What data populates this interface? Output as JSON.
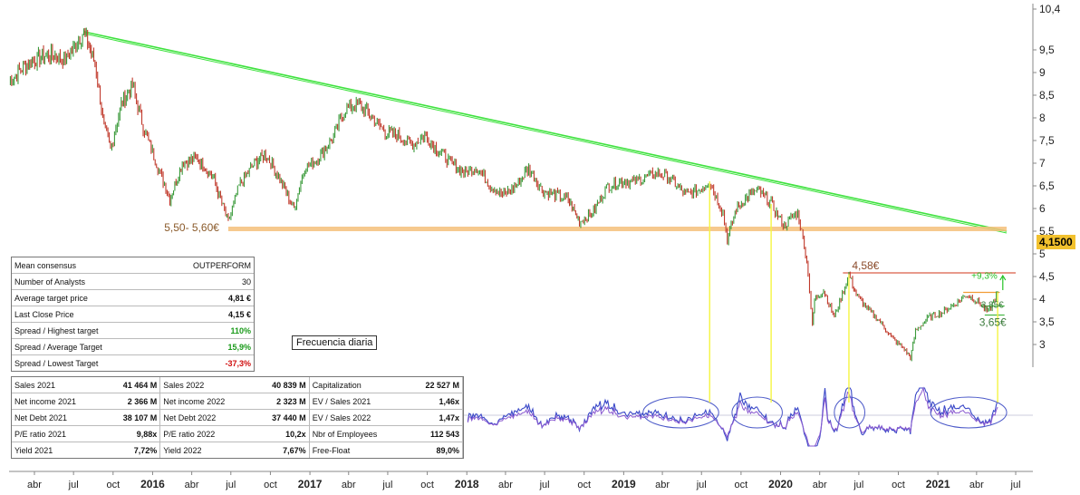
{
  "chart_data": {
    "type": "line",
    "title": "",
    "frequency_label": "Frecuencia diaria",
    "y_axis": {
      "position": "right",
      "range": [
        2.5,
        10.4
      ],
      "tick_labels": [
        "10,4",
        "9,5",
        "9",
        "8,5",
        "8",
        "7,5",
        "7",
        "6,5",
        "6",
        "5,5",
        "5",
        "4,5",
        "4",
        "3,5",
        "3"
      ],
      "ticks": [
        10.4,
        9.5,
        9,
        8.5,
        8,
        7.5,
        7,
        6.5,
        6,
        5.5,
        5,
        4.5,
        4,
        3.5,
        3
      ]
    },
    "x_axis": {
      "range": [
        "2015-02-01",
        "2021-08-10"
      ],
      "ticks": [
        {
          "label": "abr",
          "date": "2015-04-01",
          "year": false
        },
        {
          "label": "jul",
          "date": "2015-07-01",
          "year": false
        },
        {
          "label": "oct",
          "date": "2015-10-01",
          "year": false
        },
        {
          "label": "2016",
          "date": "2016-01-01",
          "year": true
        },
        {
          "label": "abr",
          "date": "2016-04-01",
          "year": false
        },
        {
          "label": "jul",
          "date": "2016-07-01",
          "year": false
        },
        {
          "label": "oct",
          "date": "2016-10-01",
          "year": false
        },
        {
          "label": "2017",
          "date": "2017-01-01",
          "year": true
        },
        {
          "label": "abr",
          "date": "2017-04-01",
          "year": false
        },
        {
          "label": "jul",
          "date": "2017-07-01",
          "year": false
        },
        {
          "label": "oct",
          "date": "2017-10-01",
          "year": false
        },
        {
          "label": "2018",
          "date": "2018-01-01",
          "year": true
        },
        {
          "label": "abr",
          "date": "2018-04-01",
          "year": false
        },
        {
          "label": "jul",
          "date": "2018-07-01",
          "year": false
        },
        {
          "label": "oct",
          "date": "2018-10-01",
          "year": false
        },
        {
          "label": "2019",
          "date": "2019-01-01",
          "year": true
        },
        {
          "label": "abr",
          "date": "2019-04-01",
          "year": false
        },
        {
          "label": "jul",
          "date": "2019-07-01",
          "year": false
        },
        {
          "label": "oct",
          "date": "2019-10-01",
          "year": false
        },
        {
          "label": "2020",
          "date": "2020-01-01",
          "year": true
        },
        {
          "label": "abr",
          "date": "2020-04-01",
          "year": false
        },
        {
          "label": "jul",
          "date": "2020-07-01",
          "year": false
        },
        {
          "label": "oct",
          "date": "2020-10-01",
          "year": false
        },
        {
          "label": "2021",
          "date": "2021-01-01",
          "year": true
        },
        {
          "label": "abr",
          "date": "2021-04-01",
          "year": false
        },
        {
          "label": "jul",
          "date": "2021-07-01",
          "year": false
        }
      ]
    },
    "price_series": [
      {
        "date": "2015-02-01",
        "value": 8.8
      },
      {
        "date": "2015-03-15",
        "value": 9.2
      },
      {
        "date": "2015-05-01",
        "value": 9.4
      },
      {
        "date": "2015-06-15",
        "value": 9.3
      },
      {
        "date": "2015-07-25",
        "value": 9.9
      },
      {
        "date": "2015-08-20",
        "value": 9.2
      },
      {
        "date": "2015-09-10",
        "value": 7.8
      },
      {
        "date": "2015-09-25",
        "value": 7.3
      },
      {
        "date": "2015-10-20",
        "value": 8.3
      },
      {
        "date": "2015-11-15",
        "value": 8.7
      },
      {
        "date": "2015-12-10",
        "value": 7.8
      },
      {
        "date": "2016-01-10",
        "value": 7.0
      },
      {
        "date": "2016-02-10",
        "value": 6.2
      },
      {
        "date": "2016-03-10",
        "value": 7.0
      },
      {
        "date": "2016-04-15",
        "value": 7.1
      },
      {
        "date": "2016-05-20",
        "value": 6.7
      },
      {
        "date": "2016-06-25",
        "value": 5.7
      },
      {
        "date": "2016-07-20",
        "value": 6.5
      },
      {
        "date": "2016-08-25",
        "value": 7.0
      },
      {
        "date": "2016-09-20",
        "value": 7.2
      },
      {
        "date": "2016-10-20",
        "value": 6.7
      },
      {
        "date": "2016-11-25",
        "value": 6.0
      },
      {
        "date": "2016-12-20",
        "value": 6.9
      },
      {
        "date": "2017-01-20",
        "value": 7.1
      },
      {
        "date": "2017-02-25",
        "value": 7.6
      },
      {
        "date": "2017-03-25",
        "value": 8.2
      },
      {
        "date": "2017-04-25",
        "value": 8.3
      },
      {
        "date": "2017-05-25",
        "value": 8.0
      },
      {
        "date": "2017-06-25",
        "value": 7.7
      },
      {
        "date": "2017-07-25",
        "value": 7.6
      },
      {
        "date": "2017-08-25",
        "value": 7.4
      },
      {
        "date": "2017-09-25",
        "value": 7.6
      },
      {
        "date": "2017-10-25",
        "value": 7.3
      },
      {
        "date": "2017-11-25",
        "value": 7.0
      },
      {
        "date": "2017-12-25",
        "value": 6.8
      },
      {
        "date": "2018-01-25",
        "value": 6.9
      },
      {
        "date": "2018-02-25",
        "value": 6.5
      },
      {
        "date": "2018-03-25",
        "value": 6.3
      },
      {
        "date": "2018-04-25",
        "value": 6.5
      },
      {
        "date": "2018-05-25",
        "value": 6.9
      },
      {
        "date": "2018-06-25",
        "value": 6.4
      },
      {
        "date": "2018-07-25",
        "value": 6.3
      },
      {
        "date": "2018-08-25",
        "value": 6.2
      },
      {
        "date": "2018-09-20",
        "value": 5.7
      },
      {
        "date": "2018-10-20",
        "value": 5.9
      },
      {
        "date": "2018-11-25",
        "value": 6.5
      },
      {
        "date": "2018-12-25",
        "value": 6.6
      },
      {
        "date": "2019-01-25",
        "value": 6.6
      },
      {
        "date": "2019-02-25",
        "value": 6.7
      },
      {
        "date": "2019-03-25",
        "value": 6.8
      },
      {
        "date": "2019-04-25",
        "value": 6.6
      },
      {
        "date": "2019-05-25",
        "value": 6.3
      },
      {
        "date": "2019-06-25",
        "value": 6.4
      },
      {
        "date": "2019-07-20",
        "value": 6.6
      },
      {
        "date": "2019-08-20",
        "value": 5.9
      },
      {
        "date": "2019-08-30",
        "value": 5.3
      },
      {
        "date": "2019-09-20",
        "value": 6.0
      },
      {
        "date": "2019-10-20",
        "value": 6.3
      },
      {
        "date": "2019-11-10",
        "value": 6.4
      },
      {
        "date": "2019-12-10",
        "value": 6.1
      },
      {
        "date": "2020-01-10",
        "value": 5.6
      },
      {
        "date": "2020-01-25",
        "value": 5.8
      },
      {
        "date": "2020-02-10",
        "value": 5.9
      },
      {
        "date": "2020-02-25",
        "value": 5.2
      },
      {
        "date": "2020-03-05",
        "value": 4.6
      },
      {
        "date": "2020-03-15",
        "value": 3.4
      },
      {
        "date": "2020-03-20",
        "value": 4.0
      },
      {
        "date": "2020-04-10",
        "value": 4.2
      },
      {
        "date": "2020-05-05",
        "value": 3.6
      },
      {
        "date": "2020-06-08",
        "value": 4.55
      },
      {
        "date": "2020-06-25",
        "value": 4.1
      },
      {
        "date": "2020-07-20",
        "value": 3.8
      },
      {
        "date": "2020-08-20",
        "value": 3.5
      },
      {
        "date": "2020-09-20",
        "value": 3.1
      },
      {
        "date": "2020-10-15",
        "value": 2.9
      },
      {
        "date": "2020-10-29",
        "value": 2.7
      },
      {
        "date": "2020-11-10",
        "value": 3.3
      },
      {
        "date": "2020-12-10",
        "value": 3.6
      },
      {
        "date": "2021-01-10",
        "value": 3.7
      },
      {
        "date": "2021-02-10",
        "value": 3.9
      },
      {
        "date": "2021-03-10",
        "value": 4.1
      },
      {
        "date": "2021-04-10",
        "value": 3.9
      },
      {
        "date": "2021-04-28",
        "value": 3.7
      },
      {
        "date": "2021-05-20",
        "value": 4.15
      }
    ],
    "trendline_green": {
      "from": {
        "date": "2015-07-25",
        "value": 9.9
      },
      "to": {
        "date": "2021-06-10",
        "value": 5.5
      }
    },
    "support_band": {
      "label": "5,50- 5,60€",
      "low": 5.5,
      "high": 5.6,
      "from": "2016-06-25",
      "to": "2021-06-10"
    },
    "resistance_level": {
      "label": "4,58€",
      "value": 4.58,
      "from": "2020-05-25",
      "to": "2021-07-01"
    },
    "short_levels": [
      {
        "label": "",
        "value": 4.15,
        "from": "2021-03-01",
        "to": "2021-05-25",
        "color": "#f29d36"
      },
      {
        "label": "3,85€",
        "value": 3.85,
        "from": "2021-04-20",
        "to": "2021-06-05",
        "color": "#48b848"
      },
      {
        "label": "3,65€",
        "value": 3.65,
        "from": "2021-04-20",
        "to": "2021-06-05",
        "color": "#48b848"
      }
    ],
    "upside_annotation": "+9,3%",
    "current_price_label": "4,1500",
    "vertical_markers": [
      "2019-07-20",
      "2019-12-10",
      "2020-06-08",
      "2021-05-20"
    ],
    "oscillator_ellipses": [
      {
        "from": "2019-02-15",
        "to": "2019-08-10"
      },
      {
        "from": "2019-09-10",
        "to": "2020-01-05"
      },
      {
        "from": "2020-05-05",
        "to": "2020-07-15"
      },
      {
        "from": "2020-12-15",
        "to": "2021-06-10"
      }
    ],
    "colors": {
      "up_candle": "#3a9a3a",
      "down_candle": "#c0392b",
      "trendline": "#3ee23e",
      "support": "#f5c07a",
      "resistance": "#e89a8c",
      "marker": "#f5f542",
      "oscillator": "#3a48c8",
      "oscillator2": "#8a5ad0"
    }
  },
  "consensus_table": {
    "rows": [
      {
        "label": "Mean consensus",
        "value": "OUTPERFORM",
        "style": "plain"
      },
      {
        "label": "Number of Analysts",
        "value": "30",
        "style": "plain"
      },
      {
        "label": "Average target price",
        "value": "4,81 €",
        "style": "bold"
      },
      {
        "label": "Last Close Price",
        "value": "4,15 €",
        "style": "bold"
      },
      {
        "label": "Spread / Highest target",
        "value": "110%",
        "style": "green"
      },
      {
        "label": "Spread / Average Target",
        "value": "15,9%",
        "style": "green"
      },
      {
        "label": "Spread / Lowest Target",
        "value": "-37,3%",
        "style": "red"
      }
    ]
  },
  "fundamentals_table": {
    "rows": [
      [
        "Sales 2021",
        "41 464 M",
        "Sales 2022",
        "40 839 M",
        "Capitalization",
        "22 527 M"
      ],
      [
        "Net income 2021",
        "2 366 M",
        "Net income 2022",
        "2 323 M",
        "EV / Sales 2021",
        "1,46x"
      ],
      [
        "Net Debt 2021",
        "38 107 M",
        "Net Debt 2022",
        "37 440 M",
        "EV / Sales 2022",
        "1,47x"
      ],
      [
        "P/E ratio 2021",
        "9,88x",
        "P/E ratio 2022",
        "10,2x",
        "Nbr of Employees",
        "112 543"
      ],
      [
        "Yield 2021",
        "7,72%",
        "Yield 2022",
        "7,67%",
        "Free-Float",
        "89,0%"
      ]
    ]
  }
}
